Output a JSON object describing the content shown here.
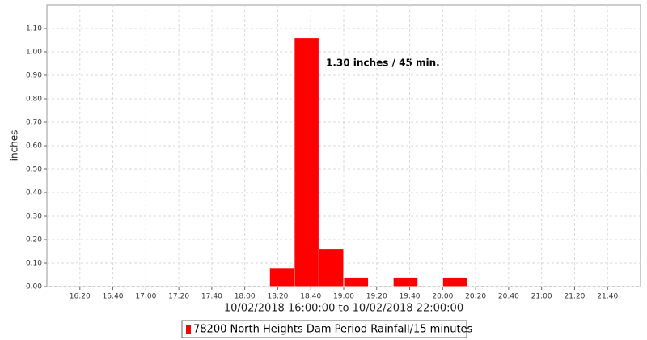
{
  "chart_data": {
    "type": "bar",
    "annotation": "1.30 inches / 45 min.",
    "xlabel": "10/02/2018 16:00:00 to 10/02/2018 22:00:00",
    "ylabel": "inches",
    "x": [
      "18:15",
      "18:30",
      "18:45",
      "19:00",
      "19:30",
      "20:00"
    ],
    "series": [
      {
        "name": "78200 North Heights Dam Period Rainfall/15 minutes",
        "color": "#ff0000",
        "values": [
          0.08,
          1.06,
          0.16,
          0.04,
          0.04,
          0.04
        ]
      }
    ],
    "xlim": [
      "16:00",
      "22:00"
    ],
    "xticks": [
      "16:20",
      "16:40",
      "17:00",
      "17:20",
      "17:40",
      "18:00",
      "18:20",
      "18:40",
      "19:00",
      "19:20",
      "19:40",
      "20:00",
      "20:20",
      "20:40",
      "21:00",
      "21:20",
      "21:40"
    ],
    "ylim": [
      0,
      1.2
    ],
    "yticks": [
      {
        "value": 0,
        "label": "0.00"
      },
      {
        "value": 0.1,
        "label": "0.10"
      },
      {
        "value": 0.2,
        "label": "0.20"
      },
      {
        "value": 0.3,
        "label": "0.30"
      },
      {
        "value": 0.4,
        "label": "0.40"
      },
      {
        "value": 0.5,
        "label": "0.50"
      },
      {
        "value": 0.6,
        "label": "0.60"
      },
      {
        "value": 0.7,
        "label": "0.70"
      },
      {
        "value": 0.8,
        "label": "0.80"
      },
      {
        "value": 0.9,
        "label": "0.90"
      },
      {
        "value": 1.0,
        "label": "1.00"
      },
      {
        "value": 1.1,
        "label": "1.10"
      }
    ],
    "grid": true
  }
}
